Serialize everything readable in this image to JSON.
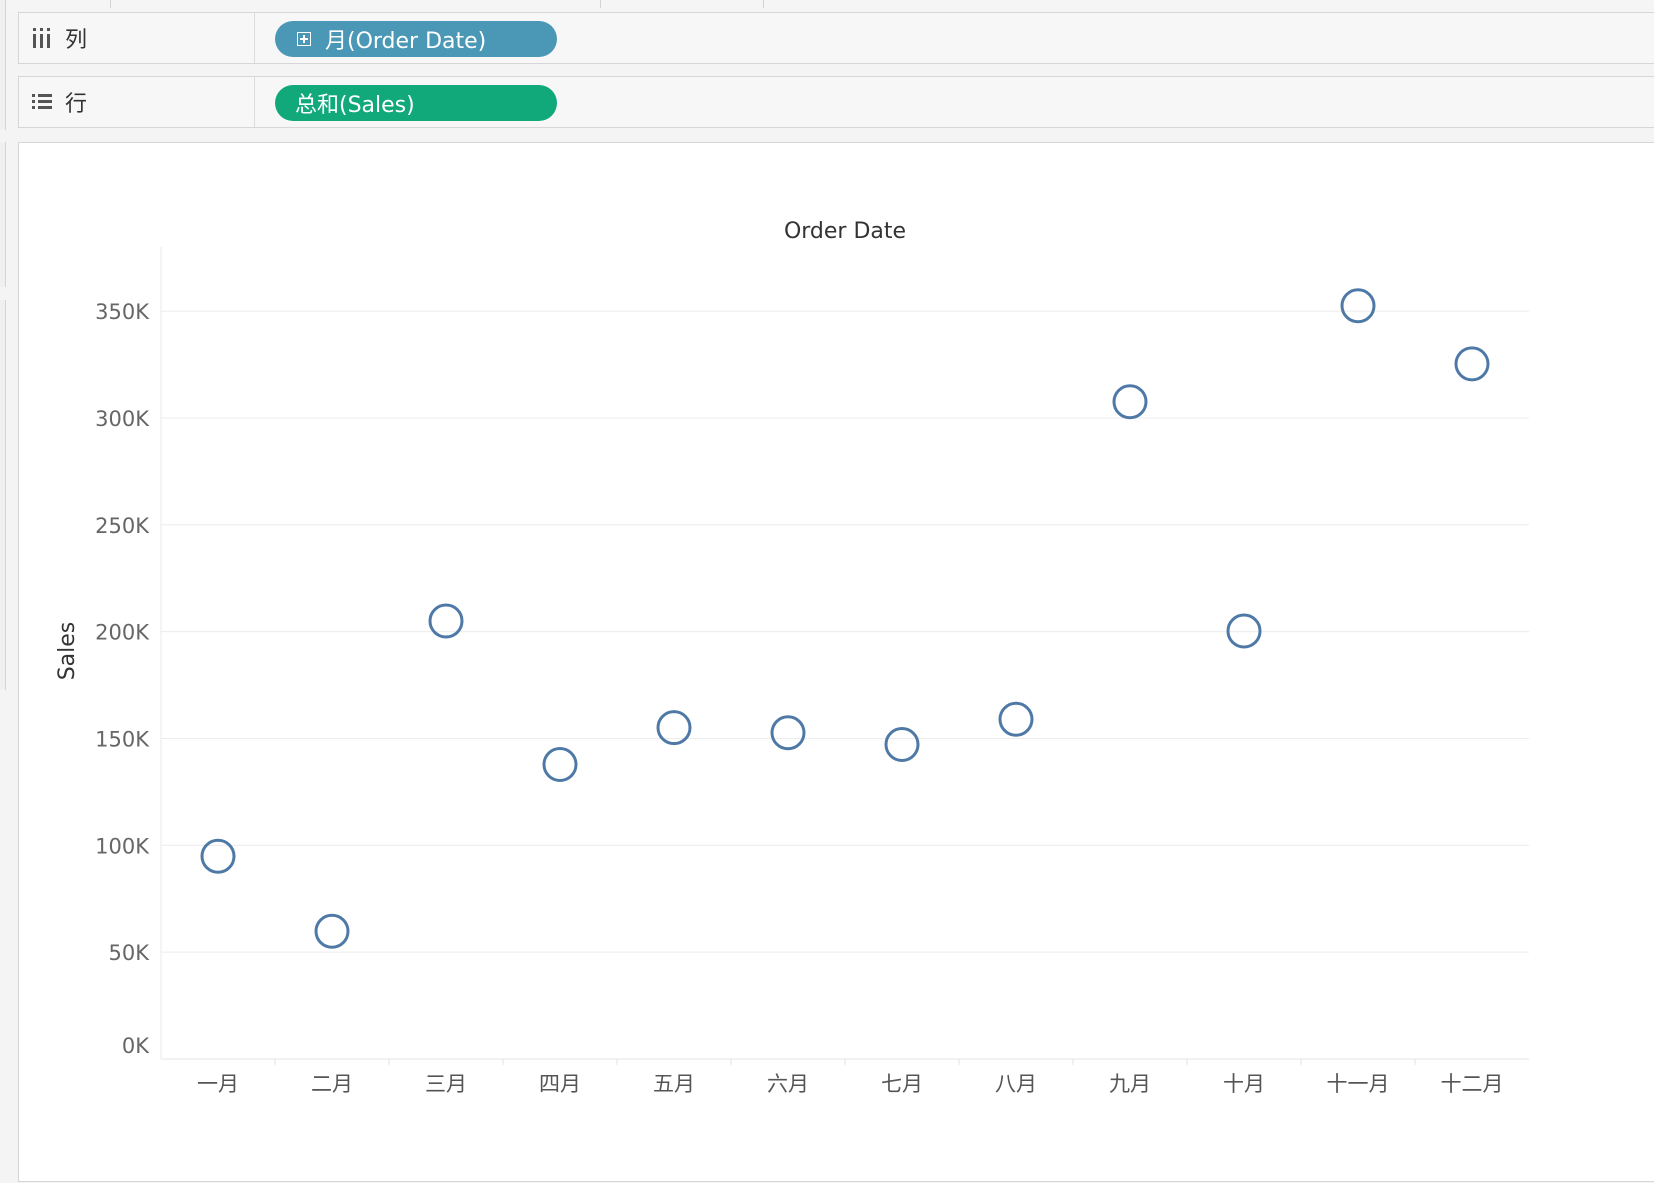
{
  "shelves": {
    "columns": {
      "label": "列",
      "icon": "columns-icon",
      "pill": "月(Order Date)",
      "pill_color": "#4a97b6"
    },
    "rows": {
      "label": "行",
      "icon": "rows-icon",
      "pill": "总和(Sales)",
      "pill_color": "#11a97a"
    }
  },
  "chart_data": {
    "type": "scatter",
    "title": "Order Date",
    "xlabel": "",
    "ylabel": "Sales",
    "categories": [
      "一月",
      "二月",
      "三月",
      "四月",
      "五月",
      "六月",
      "七月",
      "八月",
      "九月",
      "十月",
      "十一月",
      "十二月"
    ],
    "values": [
      94900,
      59800,
      205000,
      137800,
      155100,
      152700,
      147200,
      159000,
      307600,
      200300,
      352500,
      325300
    ],
    "yticks": [
      0,
      50000,
      100000,
      150000,
      200000,
      250000,
      300000,
      350000
    ],
    "ytick_labels": [
      "0K",
      "50K",
      "100K",
      "150K",
      "200K",
      "250K",
      "300K",
      "350K"
    ],
    "ylim": [
      0,
      380000
    ],
    "grid": true,
    "marker": "open-circle",
    "marker_color": "#4e79a7"
  }
}
